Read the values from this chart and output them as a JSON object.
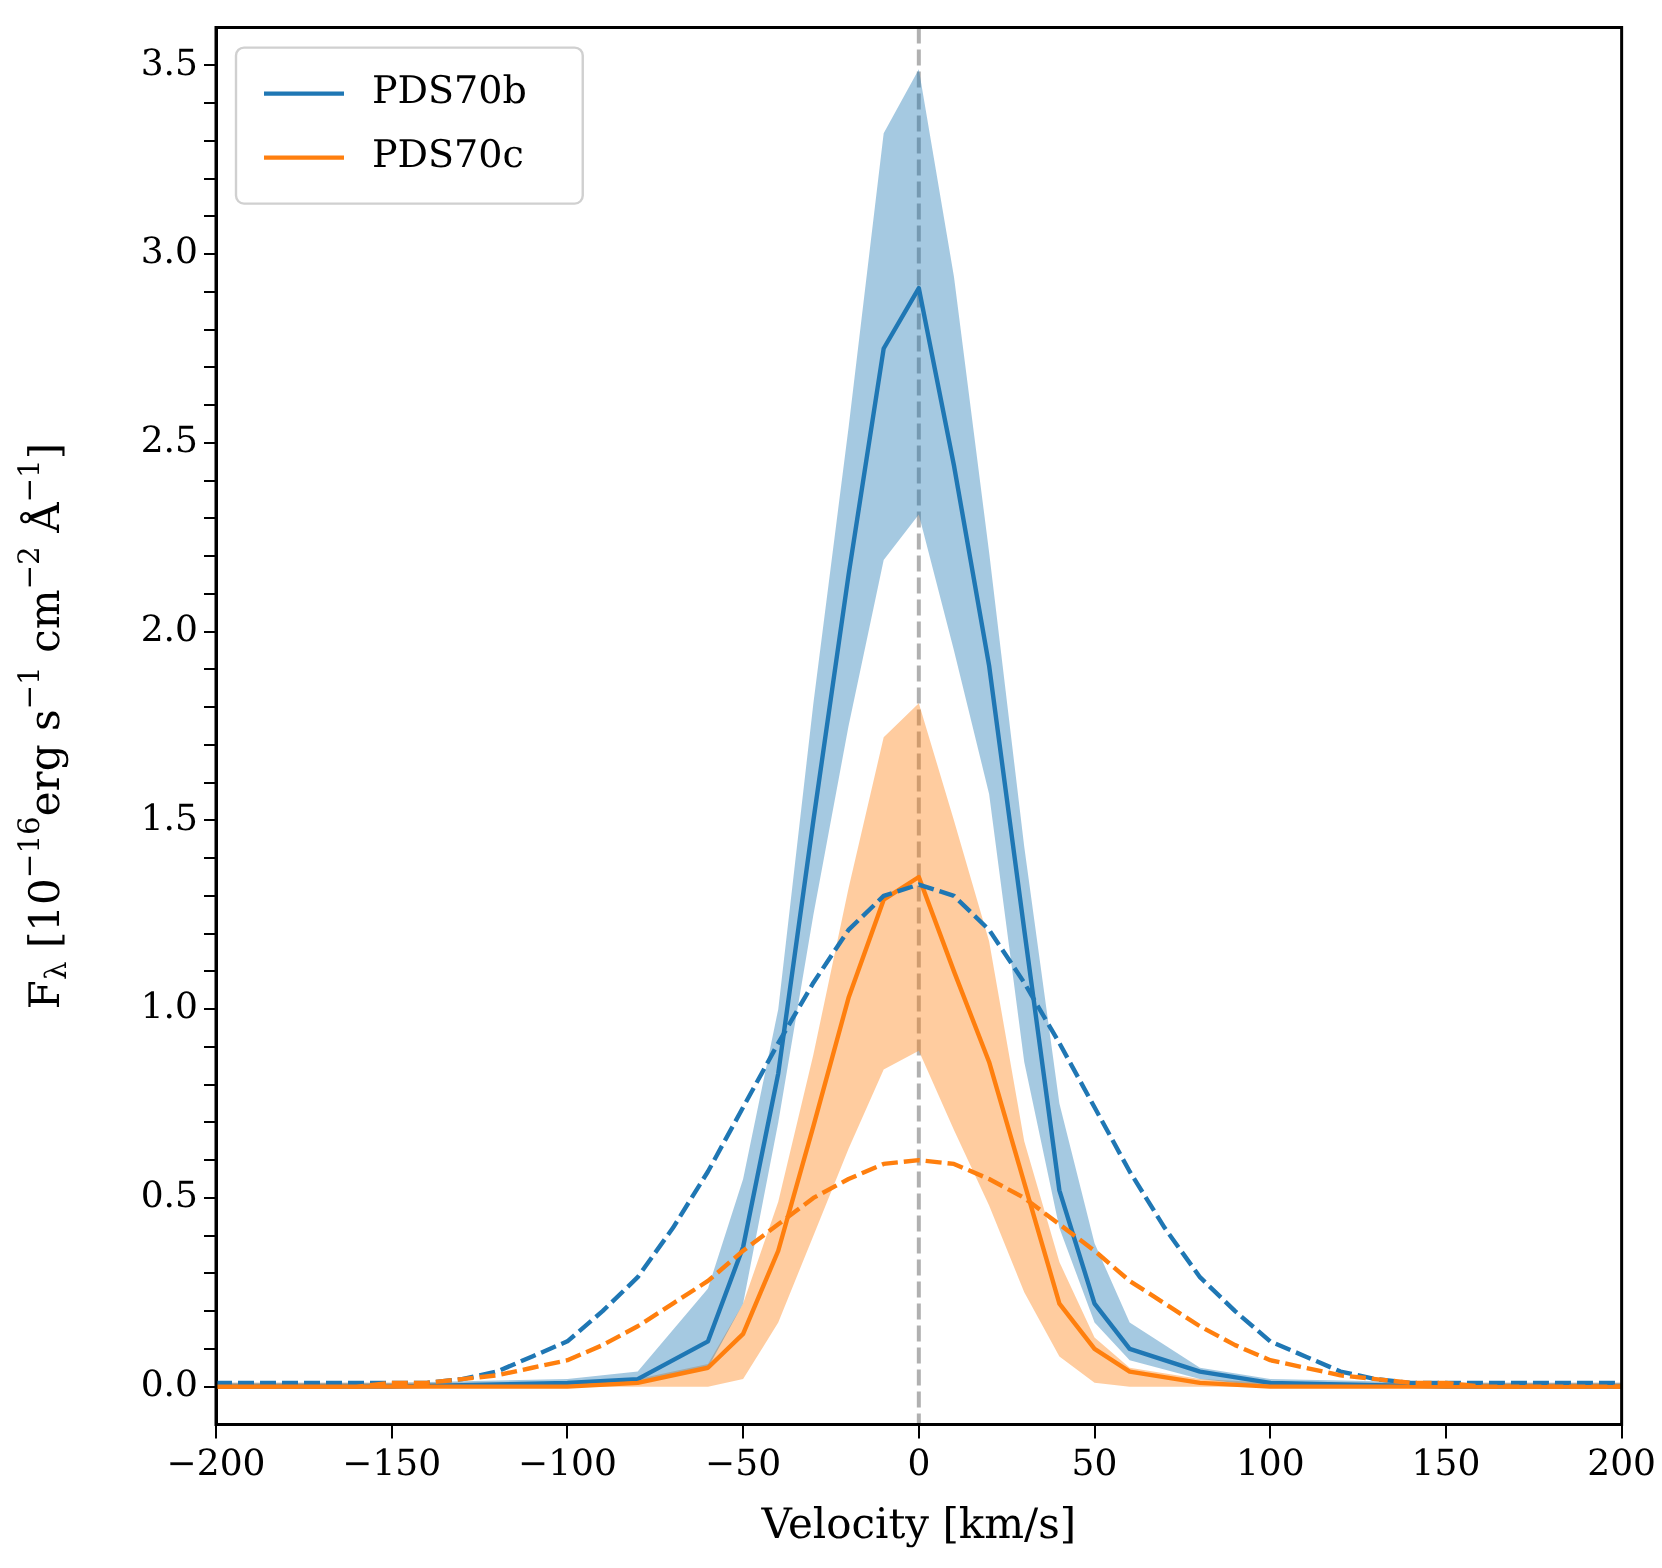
{
  "chart_data": {
    "type": "line",
    "xlabel": "Velocity [km/s]",
    "ylabel": "F$_{λ}$ [10$^{−16}$erg s$^{−1}$ cm$^{−2}$ Å$^{−1}$]",
    "x": [
      -200,
      -150,
      -100,
      -80,
      -60,
      -50,
      -40,
      -30,
      -20,
      -10,
      0,
      10,
      20,
      30,
      40,
      50,
      60,
      80,
      100,
      150,
      200
    ],
    "series": [
      {
        "name": "PDS70b",
        "color": "#1f77b4",
        "values": [
          0,
          0,
          0.01,
          0.02,
          0.12,
          0.37,
          0.83,
          1.5,
          2.15,
          2.75,
          2.91,
          2.44,
          1.91,
          1.21,
          0.52,
          0.22,
          0.1,
          0.04,
          0.01,
          0,
          0
        ],
        "lower": [
          0,
          0,
          0,
          0.01,
          0.05,
          0.22,
          0.7,
          1.25,
          1.75,
          2.19,
          2.31,
          1.95,
          1.57,
          0.86,
          0.42,
          0.17,
          0.07,
          0.02,
          0,
          0,
          0
        ],
        "upper": [
          0.01,
          0.01,
          0.02,
          0.04,
          0.26,
          0.55,
          1.0,
          1.81,
          2.54,
          3.32,
          3.49,
          2.94,
          2.21,
          1.43,
          0.75,
          0.38,
          0.17,
          0.05,
          0.02,
          0.01,
          0.01
        ]
      },
      {
        "name": "PDS70c",
        "color": "#ff7f0e",
        "values": [
          0,
          0,
          0,
          0.01,
          0.05,
          0.14,
          0.36,
          0.69,
          1.03,
          1.29,
          1.35,
          1.1,
          0.86,
          0.54,
          0.22,
          0.1,
          0.04,
          0.01,
          0,
          0,
          0
        ],
        "lower": [
          0,
          0,
          0,
          0,
          0,
          0.02,
          0.17,
          0.4,
          0.63,
          0.84,
          0.89,
          0.68,
          0.48,
          0.25,
          0.08,
          0.01,
          0,
          0,
          0,
          0,
          0
        ],
        "upper": [
          0.01,
          0.01,
          0.01,
          0.02,
          0.06,
          0.22,
          0.49,
          0.88,
          1.32,
          1.72,
          1.81,
          1.5,
          1.18,
          0.65,
          0.33,
          0.13,
          0.05,
          0.02,
          0.01,
          0.01,
          0.01
        ]
      },
      {
        "color": "#1f77b4",
        "line_style": "dashed",
        "x": [
          -200,
          -180,
          -160,
          -150,
          -140,
          -130,
          -120,
          -110,
          -100,
          -90,
          -80,
          -70,
          -60,
          -50,
          -40,
          -30,
          -20,
          -10,
          0,
          10,
          20,
          30,
          40,
          50,
          60,
          70,
          80,
          90,
          100,
          110,
          120,
          130,
          140,
          150,
          160,
          180,
          200
        ],
        "values": [
          0.01,
          0.01,
          0.01,
          0.01,
          0.01,
          0.02,
          0.04,
          0.08,
          0.12,
          0.2,
          0.29,
          0.42,
          0.57,
          0.74,
          0.91,
          1.07,
          1.21,
          1.3,
          1.33,
          1.3,
          1.21,
          1.07,
          0.91,
          0.74,
          0.57,
          0.42,
          0.29,
          0.2,
          0.12,
          0.08,
          0.04,
          0.02,
          0.01,
          0.01,
          0.01,
          0.01,
          0.01
        ]
      },
      {
        "color": "#ff7f0e",
        "line_style": "dashed",
        "x": [
          -200,
          -180,
          -160,
          -150,
          -140,
          -130,
          -120,
          -110,
          -100,
          -90,
          -80,
          -70,
          -60,
          -50,
          -40,
          -30,
          -20,
          -10,
          0,
          10,
          20,
          30,
          40,
          50,
          60,
          70,
          80,
          90,
          100,
          110,
          120,
          130,
          140,
          150,
          160,
          180,
          200
        ],
        "values": [
          0,
          0,
          0,
          0.01,
          0.01,
          0.02,
          0.03,
          0.05,
          0.07,
          0.11,
          0.16,
          0.22,
          0.28,
          0.36,
          0.43,
          0.5,
          0.55,
          0.59,
          0.6,
          0.59,
          0.55,
          0.5,
          0.43,
          0.36,
          0.28,
          0.22,
          0.16,
          0.11,
          0.07,
          0.05,
          0.03,
          0.02,
          0.01,
          0.01,
          0,
          0,
          0
        ]
      }
    ],
    "ref_lines": [
      {
        "axis": "x",
        "value": 0,
        "color": "#b0b0b0",
        "line_style": "dashed"
      }
    ],
    "xlim": [
      -200,
      200
    ],
    "xticks": [
      {
        "value": -200,
        "label": "−200"
      },
      {
        "value": -150,
        "label": "−150"
      },
      {
        "value": -100,
        "label": "−100"
      },
      {
        "value": -50,
        "label": "−50"
      },
      0,
      50,
      100,
      150,
      200
    ],
    "ylim": [
      -0.1,
      3.6
    ],
    "yticks": [
      {
        "value": 0,
        "label": "0.0"
      },
      {
        "value": 0.1,
        "label": null
      },
      {
        "value": 0.2,
        "label": null
      },
      {
        "value": 0.3,
        "label": null
      },
      {
        "value": 0.4,
        "label": null
      },
      {
        "value": 0.5,
        "label": "0.5"
      },
      {
        "value": 0.6,
        "label": null
      },
      {
        "value": 0.7,
        "label": null
      },
      {
        "value": 0.8,
        "label": null
      },
      {
        "value": 0.9,
        "label": null
      },
      {
        "value": 1,
        "label": "1.0"
      },
      {
        "value": 1.1,
        "label": null
      },
      {
        "value": 1.2,
        "label": null
      },
      {
        "value": 1.3,
        "label": null
      },
      {
        "value": 1.4,
        "label": null
      },
      {
        "value": 1.5,
        "label": "1.5"
      },
      {
        "value": 1.6,
        "label": null
      },
      {
        "value": 1.7,
        "label": null
      },
      {
        "value": 1.8,
        "label": null
      },
      {
        "value": 1.9,
        "label": null
      },
      {
        "value": 2,
        "label": "2.0"
      },
      {
        "value": 2.1,
        "label": null
      },
      {
        "value": 2.2,
        "label": null
      },
      {
        "value": 2.3,
        "label": null
      },
      {
        "value": 2.4,
        "label": null
      },
      {
        "value": 2.5,
        "label": "2.5"
      },
      {
        "value": 2.6,
        "label": null
      },
      {
        "value": 2.7,
        "label": null
      },
      {
        "value": 2.8,
        "label": null
      },
      {
        "value": 2.9,
        "label": null
      },
      {
        "value": 3,
        "label": "3.0"
      },
      {
        "value": 3.1,
        "label": null
      },
      {
        "value": 3.2,
        "label": null
      },
      {
        "value": 3.3,
        "label": null
      },
      {
        "value": 3.4,
        "label": null
      },
      {
        "value": 3.5,
        "label": "3.5"
      }
    ],
    "legend": "top left",
    "marker": "none"
  }
}
